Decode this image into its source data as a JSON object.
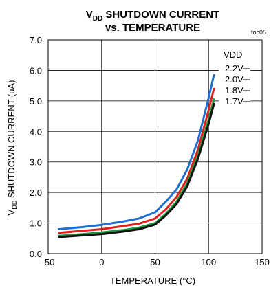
{
  "chart_data": {
    "type": "line",
    "title_prefix": "V",
    "title_sub": "DD",
    "title_line1_rest": " SHUTDOWN CURRENT",
    "title_line2": "vs. TEMPERATURE",
    "tag": "toc05",
    "xlabel": "TEMPERATURE (°C)",
    "ylabel_prefix": "V",
    "ylabel_sub": "DD",
    "ylabel_rest": " SHUTDOWN CURRENT (uA)",
    "xlim": [
      -50,
      150
    ],
    "ylim": [
      0,
      7
    ],
    "x_ticks": [
      "-50",
      "0",
      "50",
      "100",
      "150"
    ],
    "y_ticks": [
      "0.0",
      "1.0",
      "2.0",
      "3.0",
      "4.0",
      "5.0",
      "6.0",
      "7.0"
    ],
    "grid": true,
    "legend_title": "VDD",
    "series": [
      {
        "name": "2.2V",
        "color": "#1f6fd1",
        "x": [
          -40,
          -20,
          0,
          20,
          35,
          50,
          60,
          70,
          80,
          90,
          100,
          105
        ],
        "y": [
          0.8,
          0.86,
          0.94,
          1.05,
          1.15,
          1.35,
          1.7,
          2.1,
          2.75,
          3.7,
          5.1,
          5.85
        ]
      },
      {
        "name": "2.0V",
        "color": "#e0211d",
        "x": [
          -40,
          -20,
          0,
          20,
          35,
          50,
          60,
          70,
          80,
          90,
          100,
          105
        ],
        "y": [
          0.68,
          0.74,
          0.8,
          0.9,
          0.98,
          1.15,
          1.45,
          1.85,
          2.45,
          3.4,
          4.7,
          5.4
        ]
      },
      {
        "name": "1.8V",
        "color": "#1a9a3c",
        "x": [
          -40,
          -20,
          0,
          20,
          35,
          50,
          60,
          70,
          80,
          90,
          100,
          105
        ],
        "y": [
          0.58,
          0.63,
          0.69,
          0.77,
          0.85,
          1.0,
          1.3,
          1.7,
          2.3,
          3.2,
          4.4,
          5.05
        ]
      },
      {
        "name": "1.7V",
        "color": "#111111",
        "x": [
          -40,
          -20,
          0,
          20,
          35,
          50,
          60,
          70,
          80,
          90,
          100,
          105
        ],
        "y": [
          0.54,
          0.59,
          0.64,
          0.72,
          0.8,
          0.95,
          1.25,
          1.62,
          2.2,
          3.1,
          4.25,
          4.9
        ]
      }
    ]
  }
}
